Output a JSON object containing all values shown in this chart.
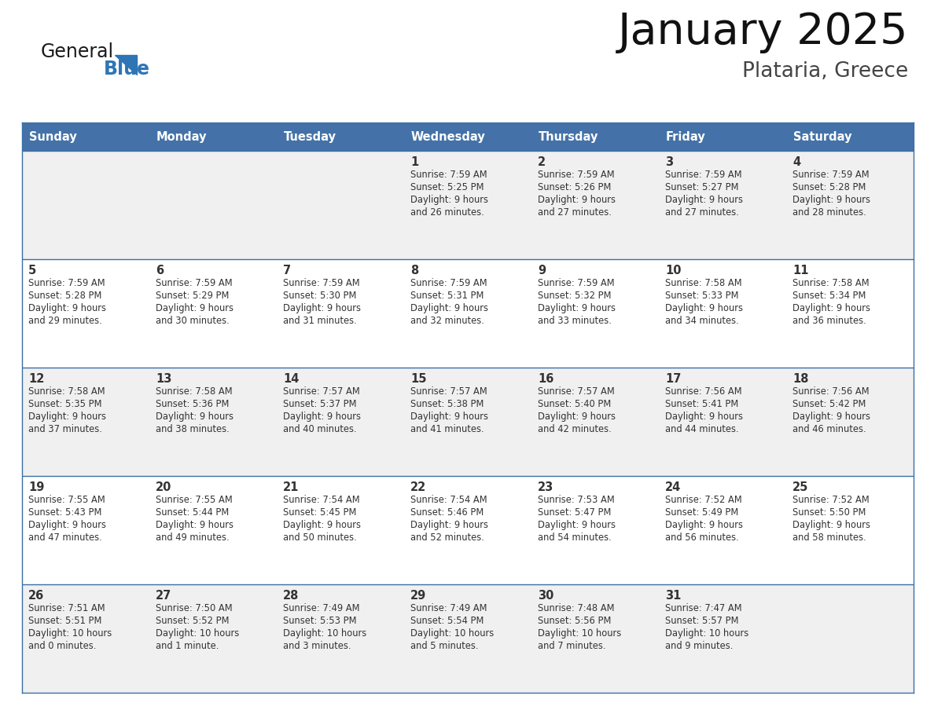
{
  "title": "January 2025",
  "subtitle": "Plataria, Greece",
  "header_color": "#4472a8",
  "header_text_color": "#ffffff",
  "cell_bg_row0": "#f0f0f0",
  "cell_bg_row1": "#ffffff",
  "cell_bg_row2": "#f0f0f0",
  "cell_bg_row3": "#ffffff",
  "cell_bg_row4": "#f0f0f0",
  "border_color": "#3a6ea8",
  "text_color": "#333333",
  "logo_general_color": "#1a1a1a",
  "logo_blue_color": "#2e75b6",
  "logo_triangle_color": "#2e75b6",
  "days_of_week": [
    "Sunday",
    "Monday",
    "Tuesday",
    "Wednesday",
    "Thursday",
    "Friday",
    "Saturday"
  ],
  "weeks": [
    [
      {
        "day": "",
        "sunrise": "",
        "sunset": "",
        "daylight1": "",
        "daylight2": ""
      },
      {
        "day": "",
        "sunrise": "",
        "sunset": "",
        "daylight1": "",
        "daylight2": ""
      },
      {
        "day": "",
        "sunrise": "",
        "sunset": "",
        "daylight1": "",
        "daylight2": ""
      },
      {
        "day": "1",
        "sunrise": "Sunrise: 7:59 AM",
        "sunset": "Sunset: 5:25 PM",
        "daylight1": "Daylight: 9 hours",
        "daylight2": "and 26 minutes."
      },
      {
        "day": "2",
        "sunrise": "Sunrise: 7:59 AM",
        "sunset": "Sunset: 5:26 PM",
        "daylight1": "Daylight: 9 hours",
        "daylight2": "and 27 minutes."
      },
      {
        "day": "3",
        "sunrise": "Sunrise: 7:59 AM",
        "sunset": "Sunset: 5:27 PM",
        "daylight1": "Daylight: 9 hours",
        "daylight2": "and 27 minutes."
      },
      {
        "day": "4",
        "sunrise": "Sunrise: 7:59 AM",
        "sunset": "Sunset: 5:28 PM",
        "daylight1": "Daylight: 9 hours",
        "daylight2": "and 28 minutes."
      }
    ],
    [
      {
        "day": "5",
        "sunrise": "Sunrise: 7:59 AM",
        "sunset": "Sunset: 5:28 PM",
        "daylight1": "Daylight: 9 hours",
        "daylight2": "and 29 minutes."
      },
      {
        "day": "6",
        "sunrise": "Sunrise: 7:59 AM",
        "sunset": "Sunset: 5:29 PM",
        "daylight1": "Daylight: 9 hours",
        "daylight2": "and 30 minutes."
      },
      {
        "day": "7",
        "sunrise": "Sunrise: 7:59 AM",
        "sunset": "Sunset: 5:30 PM",
        "daylight1": "Daylight: 9 hours",
        "daylight2": "and 31 minutes."
      },
      {
        "day": "8",
        "sunrise": "Sunrise: 7:59 AM",
        "sunset": "Sunset: 5:31 PM",
        "daylight1": "Daylight: 9 hours",
        "daylight2": "and 32 minutes."
      },
      {
        "day": "9",
        "sunrise": "Sunrise: 7:59 AM",
        "sunset": "Sunset: 5:32 PM",
        "daylight1": "Daylight: 9 hours",
        "daylight2": "and 33 minutes."
      },
      {
        "day": "10",
        "sunrise": "Sunrise: 7:58 AM",
        "sunset": "Sunset: 5:33 PM",
        "daylight1": "Daylight: 9 hours",
        "daylight2": "and 34 minutes."
      },
      {
        "day": "11",
        "sunrise": "Sunrise: 7:58 AM",
        "sunset": "Sunset: 5:34 PM",
        "daylight1": "Daylight: 9 hours",
        "daylight2": "and 36 minutes."
      }
    ],
    [
      {
        "day": "12",
        "sunrise": "Sunrise: 7:58 AM",
        "sunset": "Sunset: 5:35 PM",
        "daylight1": "Daylight: 9 hours",
        "daylight2": "and 37 minutes."
      },
      {
        "day": "13",
        "sunrise": "Sunrise: 7:58 AM",
        "sunset": "Sunset: 5:36 PM",
        "daylight1": "Daylight: 9 hours",
        "daylight2": "and 38 minutes."
      },
      {
        "day": "14",
        "sunrise": "Sunrise: 7:57 AM",
        "sunset": "Sunset: 5:37 PM",
        "daylight1": "Daylight: 9 hours",
        "daylight2": "and 40 minutes."
      },
      {
        "day": "15",
        "sunrise": "Sunrise: 7:57 AM",
        "sunset": "Sunset: 5:38 PM",
        "daylight1": "Daylight: 9 hours",
        "daylight2": "and 41 minutes."
      },
      {
        "day": "16",
        "sunrise": "Sunrise: 7:57 AM",
        "sunset": "Sunset: 5:40 PM",
        "daylight1": "Daylight: 9 hours",
        "daylight2": "and 42 minutes."
      },
      {
        "day": "17",
        "sunrise": "Sunrise: 7:56 AM",
        "sunset": "Sunset: 5:41 PM",
        "daylight1": "Daylight: 9 hours",
        "daylight2": "and 44 minutes."
      },
      {
        "day": "18",
        "sunrise": "Sunrise: 7:56 AM",
        "sunset": "Sunset: 5:42 PM",
        "daylight1": "Daylight: 9 hours",
        "daylight2": "and 46 minutes."
      }
    ],
    [
      {
        "day": "19",
        "sunrise": "Sunrise: 7:55 AM",
        "sunset": "Sunset: 5:43 PM",
        "daylight1": "Daylight: 9 hours",
        "daylight2": "and 47 minutes."
      },
      {
        "day": "20",
        "sunrise": "Sunrise: 7:55 AM",
        "sunset": "Sunset: 5:44 PM",
        "daylight1": "Daylight: 9 hours",
        "daylight2": "and 49 minutes."
      },
      {
        "day": "21",
        "sunrise": "Sunrise: 7:54 AM",
        "sunset": "Sunset: 5:45 PM",
        "daylight1": "Daylight: 9 hours",
        "daylight2": "and 50 minutes."
      },
      {
        "day": "22",
        "sunrise": "Sunrise: 7:54 AM",
        "sunset": "Sunset: 5:46 PM",
        "daylight1": "Daylight: 9 hours",
        "daylight2": "and 52 minutes."
      },
      {
        "day": "23",
        "sunrise": "Sunrise: 7:53 AM",
        "sunset": "Sunset: 5:47 PM",
        "daylight1": "Daylight: 9 hours",
        "daylight2": "and 54 minutes."
      },
      {
        "day": "24",
        "sunrise": "Sunrise: 7:52 AM",
        "sunset": "Sunset: 5:49 PM",
        "daylight1": "Daylight: 9 hours",
        "daylight2": "and 56 minutes."
      },
      {
        "day": "25",
        "sunrise": "Sunrise: 7:52 AM",
        "sunset": "Sunset: 5:50 PM",
        "daylight1": "Daylight: 9 hours",
        "daylight2": "and 58 minutes."
      }
    ],
    [
      {
        "day": "26",
        "sunrise": "Sunrise: 7:51 AM",
        "sunset": "Sunset: 5:51 PM",
        "daylight1": "Daylight: 10 hours",
        "daylight2": "and 0 minutes."
      },
      {
        "day": "27",
        "sunrise": "Sunrise: 7:50 AM",
        "sunset": "Sunset: 5:52 PM",
        "daylight1": "Daylight: 10 hours",
        "daylight2": "and 1 minute."
      },
      {
        "day": "28",
        "sunrise": "Sunrise: 7:49 AM",
        "sunset": "Sunset: 5:53 PM",
        "daylight1": "Daylight: 10 hours",
        "daylight2": "and 3 minutes."
      },
      {
        "day": "29",
        "sunrise": "Sunrise: 7:49 AM",
        "sunset": "Sunset: 5:54 PM",
        "daylight1": "Daylight: 10 hours",
        "daylight2": "and 5 minutes."
      },
      {
        "day": "30",
        "sunrise": "Sunrise: 7:48 AM",
        "sunset": "Sunset: 5:56 PM",
        "daylight1": "Daylight: 10 hours",
        "daylight2": "and 7 minutes."
      },
      {
        "day": "31",
        "sunrise": "Sunrise: 7:47 AM",
        "sunset": "Sunset: 5:57 PM",
        "daylight1": "Daylight: 10 hours",
        "daylight2": "and 9 minutes."
      },
      {
        "day": "",
        "sunrise": "",
        "sunset": "",
        "daylight1": "",
        "daylight2": ""
      }
    ]
  ]
}
